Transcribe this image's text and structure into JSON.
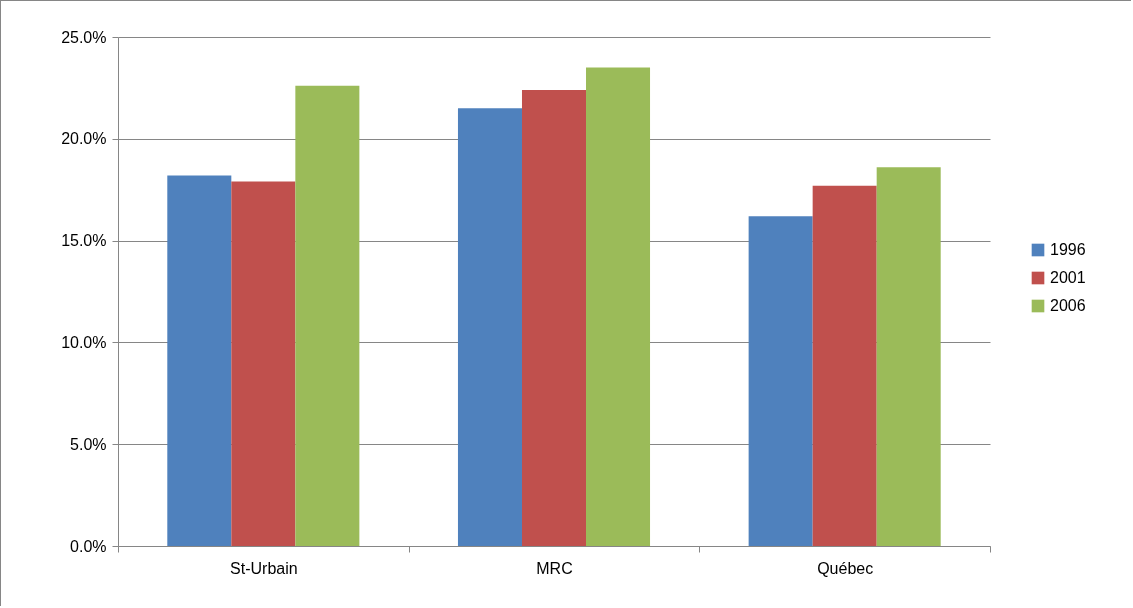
{
  "chart_data": {
    "type": "bar",
    "categories": [
      "St-Urbain",
      "MRC",
      "Québec"
    ],
    "series": [
      {
        "name": "1996",
        "color": "#4f81bd",
        "values": [
          18.2,
          21.5,
          16.2
        ]
      },
      {
        "name": "2001",
        "color": "#c0504d",
        "values": [
          17.9,
          22.4,
          17.7
        ]
      },
      {
        "name": "2006",
        "color": "#9bbb59",
        "values": [
          22.6,
          23.5,
          18.6
        ]
      }
    ],
    "ylim": [
      0,
      25
    ],
    "yticks": [
      {
        "value": 0,
        "label": "0.0%"
      },
      {
        "value": 5,
        "label": "5.0%"
      },
      {
        "value": 10,
        "label": "10.0%"
      },
      {
        "value": 15,
        "label": "15.0%"
      },
      {
        "value": 20,
        "label": "20.0%"
      },
      {
        "value": 25,
        "label": "25.0%"
      }
    ],
    "grid": "y",
    "legend": "right"
  }
}
